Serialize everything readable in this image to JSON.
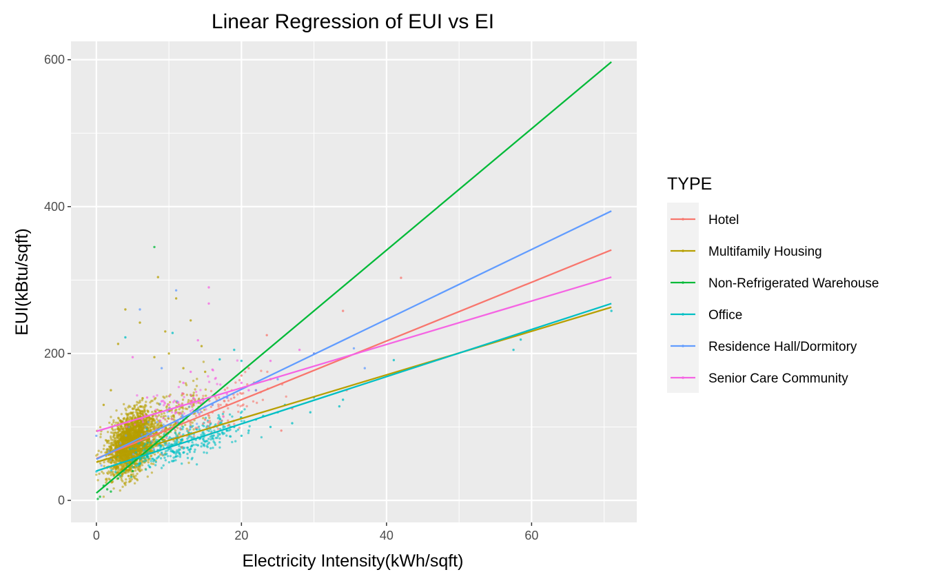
{
  "chart_data": {
    "type": "scatter",
    "title": "Linear Regression of EUI vs EI",
    "xlabel": "Electricity Intensity(kWh/sqft)",
    "ylabel": "EUI(kBtu/sqft)",
    "xlim": [
      -3.5,
      74.5
    ],
    "ylim": [
      -30,
      625
    ],
    "x_ticks": [
      0,
      20,
      40,
      60
    ],
    "y_ticks": [
      0,
      200,
      400,
      600
    ],
    "x_tick_labels": [
      "0",
      "20",
      "40",
      "60"
    ],
    "y_tick_labels": [
      "0",
      "200",
      "400",
      "600"
    ],
    "grid": true,
    "legend_title": "TYPE",
    "legend_position": "right",
    "series": [
      {
        "name": "Hotel",
        "color": "#F8766D",
        "line": {
          "x": [
            0,
            71
          ],
          "y": [
            57,
            341
          ]
        },
        "points": [
          [
            22,
            150
          ],
          [
            24,
            165
          ],
          [
            27,
            125
          ],
          [
            30,
            200
          ],
          [
            34.5,
            150
          ],
          [
            42,
            303
          ],
          [
            34,
            258
          ],
          [
            18,
            130
          ],
          [
            15,
            110
          ],
          [
            25.5,
            95
          ],
          [
            20,
            170
          ],
          [
            12,
            145
          ],
          [
            16,
            120
          ],
          [
            11,
            100
          ],
          [
            13,
            135
          ],
          [
            23.5,
            225
          ],
          [
            21,
            180
          ],
          [
            19,
            140
          ]
        ]
      },
      {
        "name": "Multifamily Housing",
        "color": "#B79F00",
        "line": {
          "x": [
            0,
            71
          ],
          "y": [
            52,
            263
          ]
        },
        "points": [
          [
            8.5,
            304
          ],
          [
            4,
            260
          ],
          [
            9.5,
            230
          ],
          [
            6,
            242
          ],
          [
            11,
            275
          ],
          [
            10,
            200
          ],
          [
            13,
            245
          ],
          [
            14.5,
            210
          ],
          [
            3,
            213
          ],
          [
            8,
            195
          ],
          [
            12,
            180
          ],
          [
            15,
            175
          ],
          [
            2,
            150
          ],
          [
            1,
            130
          ]
        ]
      },
      {
        "name": "Non-Refrigerated Warehouse",
        "color": "#00BA38",
        "line": {
          "x": [
            0,
            71
          ],
          "y": [
            10,
            597
          ]
        },
        "points": [
          [
            8,
            345
          ],
          [
            0.2,
            2
          ],
          [
            1,
            20
          ],
          [
            1.5,
            15
          ],
          [
            3,
            30
          ],
          [
            5,
            40
          ],
          [
            7,
            60
          ],
          [
            2,
            12
          ],
          [
            0.5,
            5
          ]
        ]
      },
      {
        "name": "Office",
        "color": "#00BFC4",
        "line": {
          "x": [
            0,
            71
          ],
          "y": [
            40,
            268
          ]
        },
        "points": [
          [
            71,
            258
          ],
          [
            58.5,
            219
          ],
          [
            57.5,
            205
          ],
          [
            41,
            191
          ],
          [
            34,
            137
          ],
          [
            33.5,
            128
          ],
          [
            30,
            140
          ],
          [
            29.5,
            120
          ],
          [
            27,
            105
          ],
          [
            26,
            130
          ],
          [
            25,
            120
          ],
          [
            24,
            100
          ],
          [
            23,
            115
          ],
          [
            22,
            110
          ],
          [
            21,
            95
          ],
          [
            20,
            88
          ],
          [
            19,
            100
          ],
          [
            18,
            95
          ],
          [
            17,
            90
          ],
          [
            16,
            85
          ],
          [
            15,
            80
          ],
          [
            14,
            75
          ],
          [
            13,
            70
          ],
          [
            12,
            65
          ],
          [
            11,
            60
          ],
          [
            10,
            70
          ],
          [
            9,
            65
          ],
          [
            8,
            55
          ],
          [
            7,
            60
          ],
          [
            6,
            50
          ],
          [
            5,
            55
          ],
          [
            4,
            222
          ],
          [
            17,
            192
          ],
          [
            19,
            205
          ],
          [
            20,
            190
          ],
          [
            10.5,
            228
          ]
        ]
      },
      {
        "name": "Residence Hall/Dormitory",
        "color": "#619CFF",
        "line": {
          "x": [
            0,
            71
          ],
          "y": [
            56,
            394
          ]
        },
        "points": [
          [
            11,
            286
          ],
          [
            37,
            180
          ],
          [
            35.5,
            207
          ],
          [
            30,
            200
          ],
          [
            25,
            165
          ],
          [
            22,
            150
          ],
          [
            18,
            140
          ],
          [
            16,
            130
          ],
          [
            14,
            120
          ],
          [
            12,
            110
          ],
          [
            0,
            88
          ],
          [
            9,
            180
          ],
          [
            6,
            260
          ],
          [
            13,
            100
          ]
        ]
      },
      {
        "name": "Senior Care Community",
        "color": "#F564E3",
        "line": {
          "x": [
            0,
            71
          ],
          "y": [
            94,
            304
          ]
        },
        "points": [
          [
            15.5,
            290
          ],
          [
            15.5,
            268
          ],
          [
            14,
            218
          ],
          [
            13,
            175
          ],
          [
            12,
            160
          ],
          [
            16,
            178
          ],
          [
            18,
            145
          ],
          [
            20,
            160
          ],
          [
            21,
            150
          ],
          [
            24,
            190
          ],
          [
            28,
            205
          ],
          [
            10,
            130
          ],
          [
            11,
            120
          ],
          [
            5,
            195
          ],
          [
            7,
            140
          ],
          [
            9,
            135
          ]
        ]
      }
    ]
  }
}
